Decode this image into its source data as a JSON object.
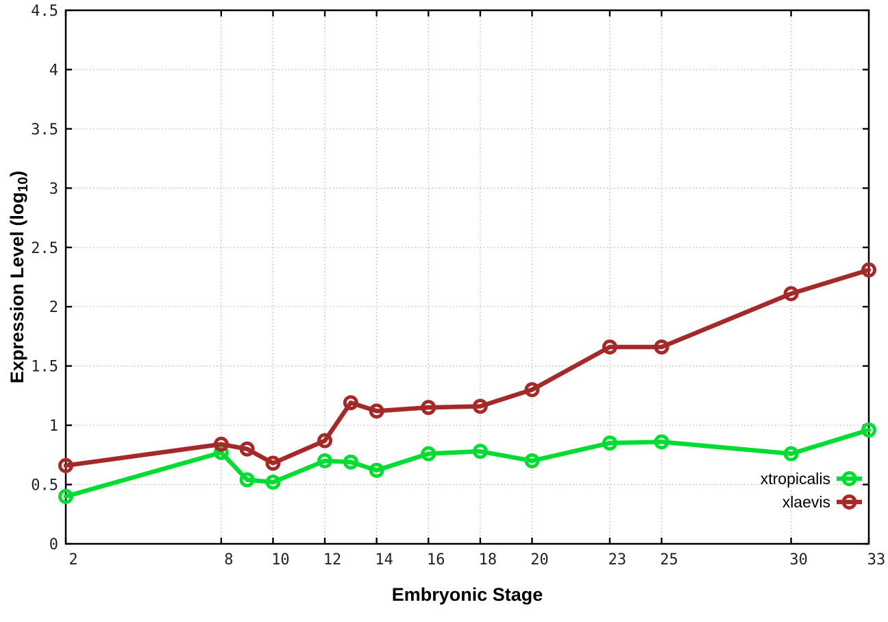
{
  "chart_data": {
    "type": "line",
    "title": "",
    "xlabel": "Embryonic Stage",
    "ylabel": "Expression Level (log10)",
    "ylabel_parts": {
      "pre": "Expression Level (log",
      "sub": "10",
      "post": ")"
    },
    "xlim": [
      2,
      33
    ],
    "ylim": [
      0,
      4.5
    ],
    "xticks": [
      2,
      8,
      10,
      12,
      14,
      16,
      18,
      20,
      23,
      25,
      30,
      33
    ],
    "xtick_labels": [
      "2",
      "8",
      "10",
      "12",
      "14",
      "16",
      "18",
      "20",
      "23",
      "25",
      "30",
      "33"
    ],
    "yticks": [
      0,
      0.5,
      1,
      1.5,
      2,
      2.5,
      3,
      3.5,
      4,
      4.5
    ],
    "ytick_labels": [
      "0",
      "0.5",
      "1",
      "1.5",
      "2",
      "2.5",
      "3",
      "3.5",
      "4",
      "4.5"
    ],
    "grid": true,
    "legend_position": "inside-bottom-right",
    "x": [
      2,
      8,
      9,
      10,
      12,
      13,
      14,
      16,
      18,
      20,
      23,
      25,
      30,
      33
    ],
    "series": [
      {
        "name": "xtropicalis",
        "color": "#00DC32",
        "values": [
          0.4,
          0.77,
          0.54,
          0.52,
          0.7,
          0.69,
          0.62,
          0.76,
          0.78,
          0.7,
          0.85,
          0.86,
          0.76,
          0.96
        ]
      },
      {
        "name": "xlaevis",
        "color": "#A42A2A",
        "values": [
          0.66,
          0.84,
          0.8,
          0.68,
          0.87,
          1.19,
          1.12,
          1.15,
          1.16,
          1.3,
          1.66,
          1.66,
          2.11,
          2.31
        ]
      }
    ],
    "colors": {
      "border": "#000000",
      "grid": "#bbbbbb",
      "tick_text": "#222222"
    }
  }
}
